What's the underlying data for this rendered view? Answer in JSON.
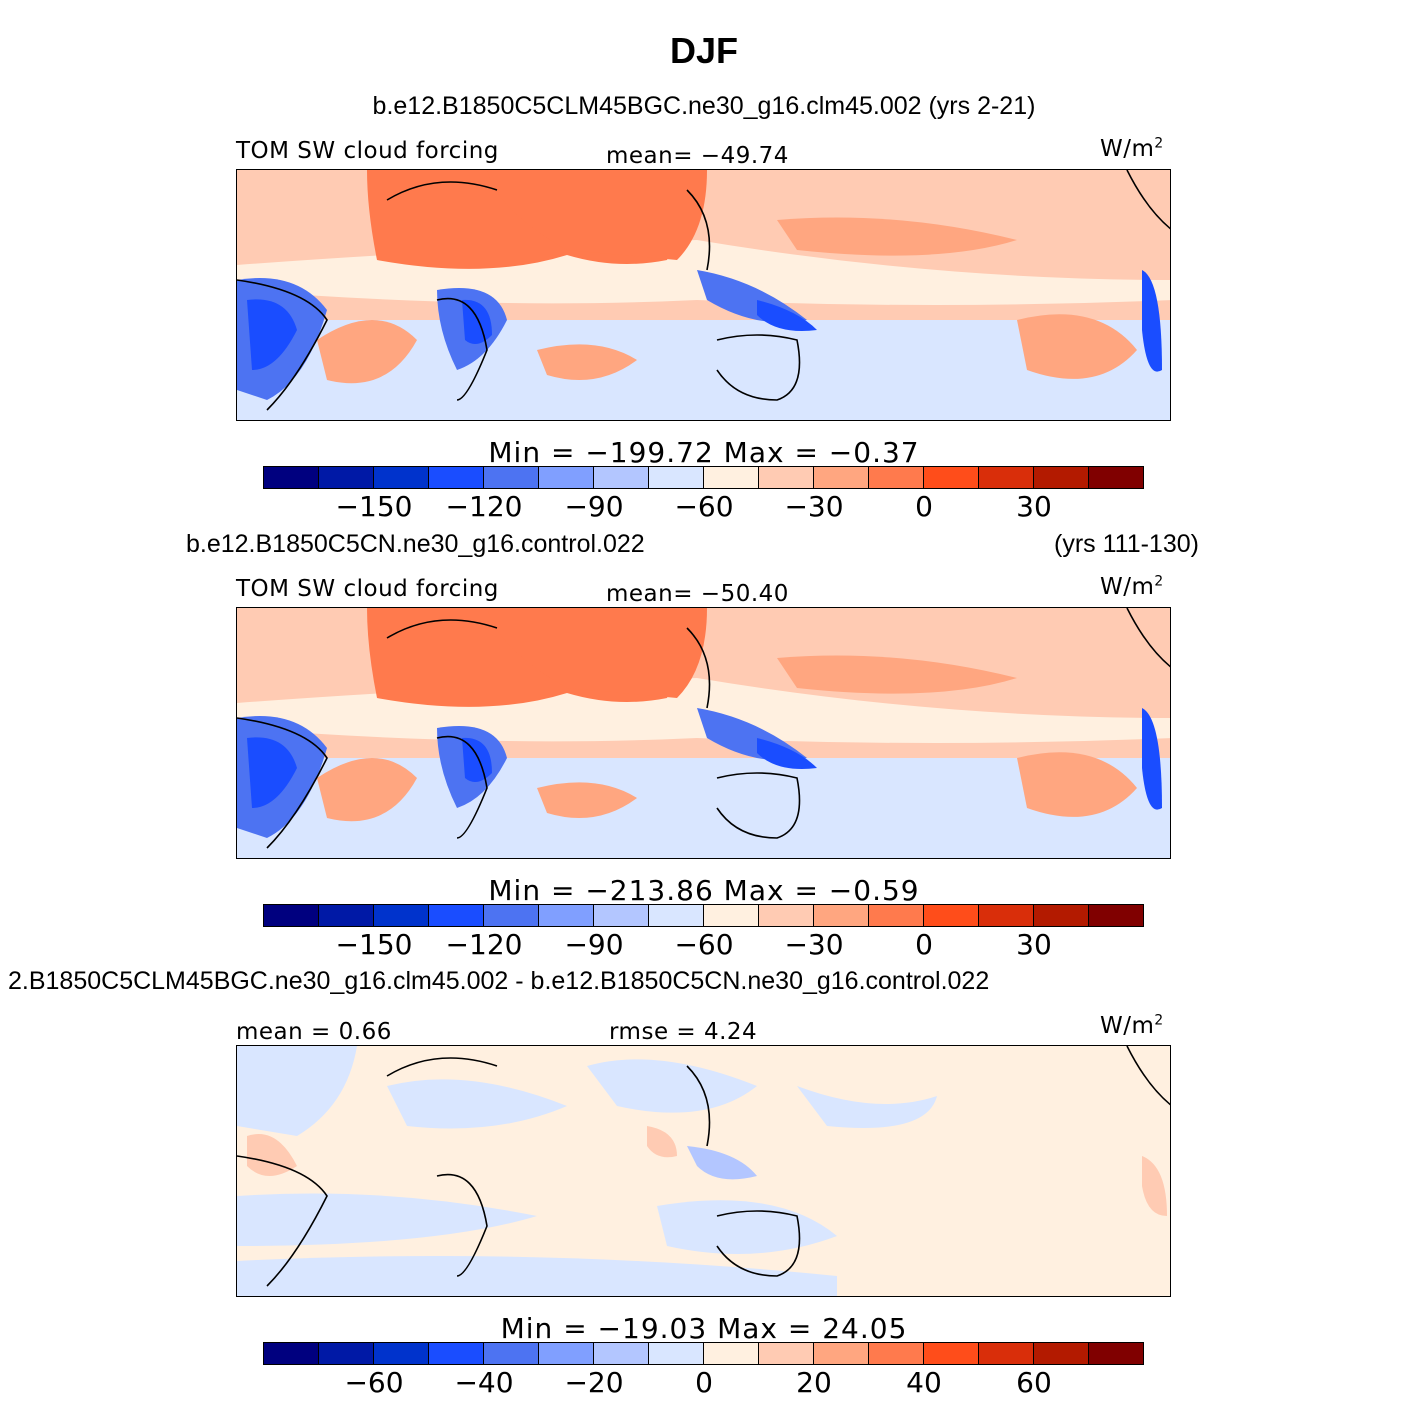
{
  "title": "DJF",
  "colors": [
    "#00007f",
    "#0019a6",
    "#0033cc",
    "#1a4dff",
    "#4d73f2",
    "#809fff",
    "#b3c6ff",
    "#d9e6ff",
    "#fff0e0",
    "#ffcbb3",
    "#ffa680",
    "#ff7a4d",
    "#ff4d1a",
    "#d92e0a",
    "#b31a00",
    "#800000"
  ],
  "land_color_note": "",
  "panels": [
    {
      "case": "b.e12.B1850C5CLM45BGC.ne30_g16.clm45.002 (yrs 2-21)",
      "years": "",
      "left_label": "TOM SW cloud forcing",
      "center_label": "mean= −49.74",
      "units": "W/m",
      "units_sup": "2",
      "minmax": "Min  =  −199.72  Max  =    −0.37",
      "ticks": [
        "−150",
        "−120",
        "−90",
        "−60",
        "−30",
        "0",
        "30"
      ]
    },
    {
      "case": "b.e12.B1850C5CN.ne30_g16.control.022",
      "years": "(yrs 111-130)",
      "left_label": "TOM SW cloud forcing",
      "center_label": "mean= −50.40",
      "units": "W/m",
      "units_sup": "2",
      "minmax": "Min  =  −213.86  Max  =    −0.59",
      "ticks": [
        "−150",
        "−120",
        "−90",
        "−60",
        "−30",
        "0",
        "30"
      ]
    },
    {
      "case": "2.B1850C5CLM45BGC.ne30_g16.clm45.002 - b.e12.B1850C5CN.ne30_g16.control.022",
      "years": "",
      "left_label": "mean =    0.66",
      "center_label": "rmse  =    4.24",
      "units": "W/m",
      "units_sup": "2",
      "minmax": "Min  =  −19.03  Max  =   24.05",
      "ticks": [
        "−60",
        "−40",
        "−20",
        "0",
        "20",
        "40",
        "60"
      ]
    }
  ]
}
